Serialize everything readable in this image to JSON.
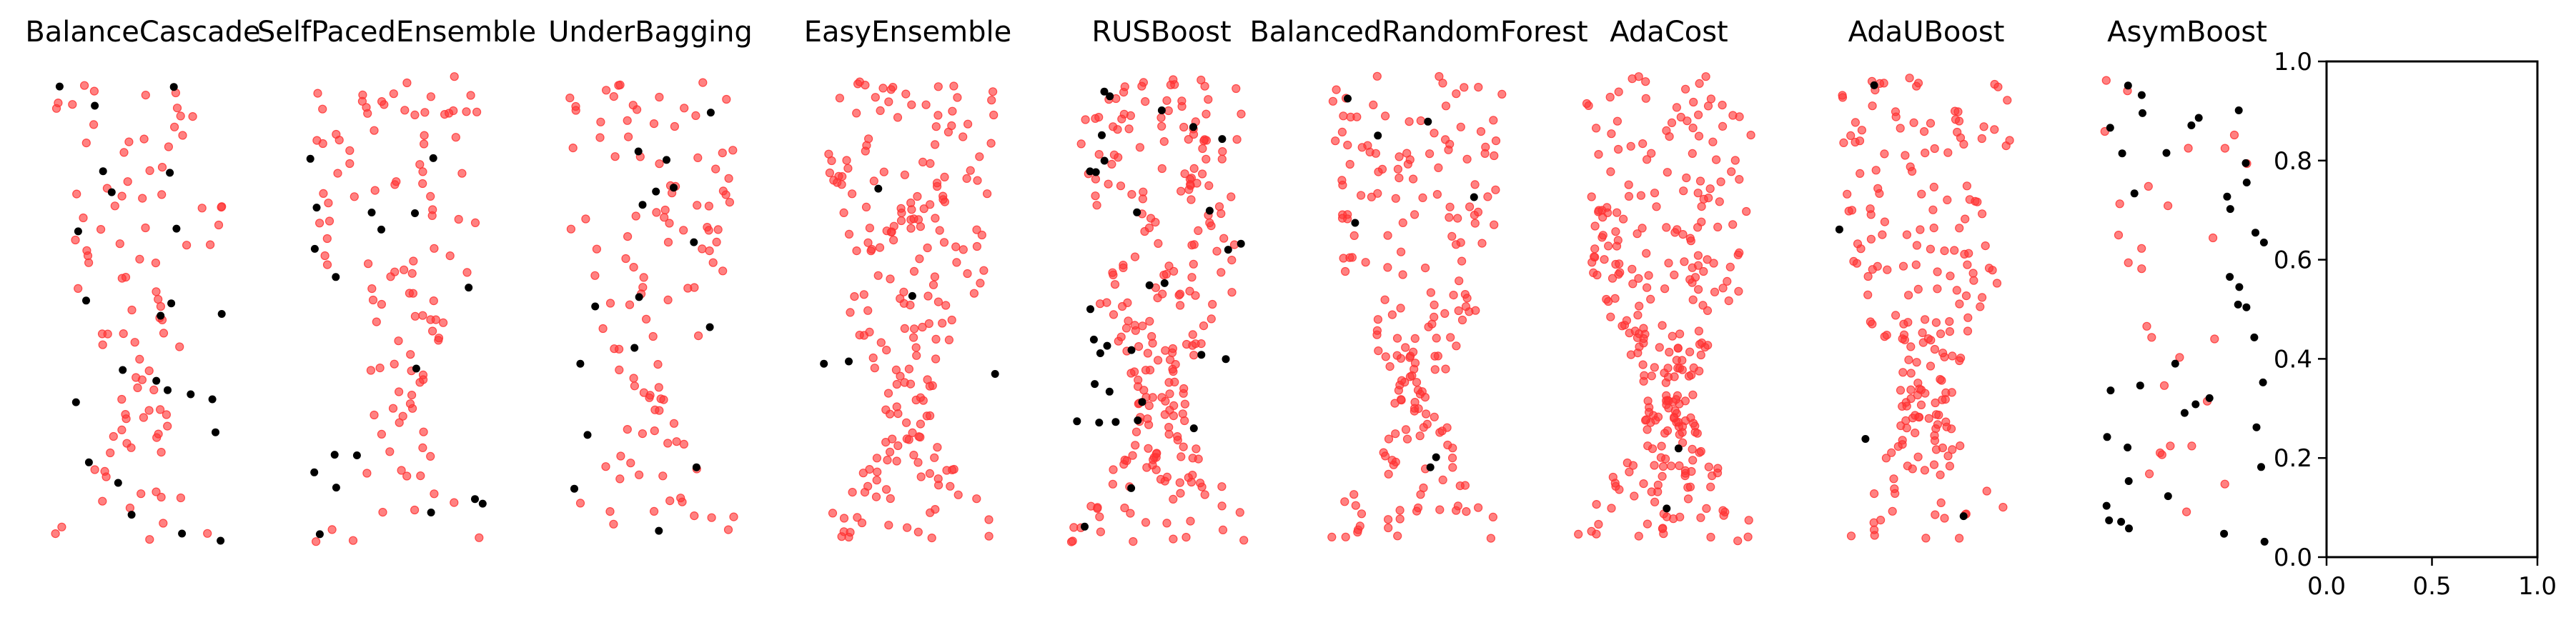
{
  "figure": {
    "colors": {
      "majority": "#ff3333",
      "minority": "#000000",
      "axis": "#000000"
    }
  },
  "chart_data": [
    {
      "type": "scatter",
      "title": "BalanceCascade",
      "axes_visible": false,
      "seed": 11,
      "red_count": 95,
      "black_count": 24,
      "xlim": [
        0,
        1
      ],
      "ylim": [
        0,
        1
      ]
    },
    {
      "type": "scatter",
      "title": "SelfPacedEnsemble",
      "axes_visible": false,
      "seed": 23,
      "red_count": 110,
      "black_count": 18,
      "xlim": [
        0,
        1
      ],
      "ylim": [
        0,
        1
      ]
    },
    {
      "type": "scatter",
      "title": "UnderBagging",
      "axes_visible": false,
      "seed": 37,
      "red_count": 110,
      "black_count": 16,
      "xlim": [
        0,
        1
      ],
      "ylim": [
        0,
        1
      ]
    },
    {
      "type": "scatter",
      "title": "EasyEnsemble",
      "axes_visible": false,
      "seed": 41,
      "red_count": 210,
      "black_count": 5,
      "xlim": [
        0,
        1
      ],
      "ylim": [
        0,
        1
      ]
    },
    {
      "type": "scatter",
      "title": "RUSBoost",
      "axes_visible": false,
      "seed": 53,
      "red_count": 240,
      "black_count": 32,
      "xlim": [
        0,
        1
      ],
      "ylim": [
        0,
        1
      ]
    },
    {
      "type": "scatter",
      "title": "BalancedRandomForest",
      "axes_visible": false,
      "seed": 67,
      "red_count": 200,
      "black_count": 7,
      "xlim": [
        0,
        1
      ],
      "ylim": [
        0,
        1
      ]
    },
    {
      "type": "scatter",
      "title": "AdaCost",
      "axes_visible": false,
      "seed": 71,
      "red_count": 290,
      "black_count": 2,
      "xlim": [
        0,
        1
      ],
      "ylim": [
        0,
        1
      ]
    },
    {
      "type": "scatter",
      "title": "AdaUBoost",
      "axes_visible": false,
      "seed": 83,
      "red_count": 210,
      "black_count": 4,
      "xlim": [
        0,
        1
      ],
      "ylim": [
        0,
        1
      ]
    },
    {
      "type": "scatter",
      "title": "AsymBoost",
      "axes_visible": false,
      "seed": 97,
      "red_count": 28,
      "black_count": 40,
      "xlim": [
        0,
        1
      ],
      "ylim": [
        0,
        1
      ]
    },
    {
      "type": "scatter",
      "title": "",
      "axes_visible": true,
      "series": [],
      "xlim": [
        0.0,
        1.0
      ],
      "ylim": [
        0.0,
        1.0
      ],
      "xticks": [
        "0.0",
        "0.5",
        "1.0"
      ],
      "yticks": [
        "0.0",
        "0.2",
        "0.4",
        "0.6",
        "0.8",
        "1.0"
      ]
    }
  ]
}
